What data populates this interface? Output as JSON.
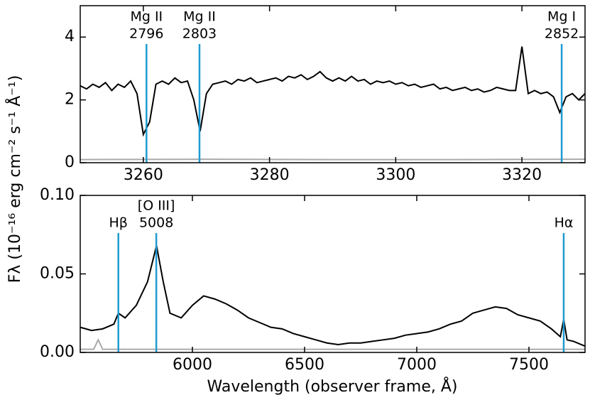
{
  "chart_data": [
    {
      "type": "line",
      "ylabel": "Fλ (10⁻¹⁶ erg cm⁻² s⁻¹ Å⁻¹)",
      "xlim": [
        3250,
        3330
      ],
      "xticks": [
        3260,
        3280,
        3300,
        3320
      ],
      "ylim": [
        0,
        5
      ],
      "yticks": [
        0,
        2,
        4
      ],
      "line_color": "#1f9bd1",
      "annotations": [
        {
          "x": 3260.5,
          "lines": [
            "Mg II",
            "2796"
          ]
        },
        {
          "x": 3268.9,
          "lines": [
            "Mg II",
            "2803"
          ]
        },
        {
          "x": 3326.3,
          "lines": [
            "Mg I",
            "2852"
          ]
        }
      ],
      "series": [
        {
          "color": "#000000",
          "x": [
            3250,
            3251,
            3252,
            3253,
            3254,
            3255,
            3256,
            3257,
            3258,
            3259,
            3260,
            3261,
            3262,
            3263,
            3264,
            3265,
            3266,
            3267,
            3268,
            3269,
            3270,
            3271,
            3272,
            3273,
            3274,
            3275,
            3276,
            3277,
            3278,
            3279,
            3280,
            3281,
            3282,
            3283,
            3284,
            3285,
            3286,
            3287,
            3288,
            3289,
            3290,
            3291,
            3292,
            3293,
            3294,
            3295,
            3296,
            3297,
            3298,
            3299,
            3300,
            3301,
            3302,
            3303,
            3304,
            3305,
            3306,
            3307,
            3308,
            3309,
            3310,
            3311,
            3312,
            3313,
            3314,
            3315,
            3316,
            3317,
            3318,
            3319,
            3320,
            3321,
            3322,
            3323,
            3324,
            3325,
            3326,
            3327,
            3328,
            3329,
            3330
          ],
          "values": [
            2.45,
            2.35,
            2.5,
            2.4,
            2.55,
            2.3,
            2.5,
            2.4,
            2.6,
            2.2,
            0.9,
            1.3,
            2.5,
            2.6,
            2.5,
            2.7,
            2.55,
            2.6,
            2.0,
            1.0,
            2.2,
            2.5,
            2.55,
            2.6,
            2.5,
            2.65,
            2.6,
            2.7,
            2.55,
            2.6,
            2.65,
            2.7,
            2.6,
            2.75,
            2.7,
            2.8,
            2.65,
            2.75,
            2.9,
            2.7,
            2.6,
            2.7,
            2.6,
            2.75,
            2.6,
            2.65,
            2.5,
            2.6,
            2.55,
            2.6,
            2.5,
            2.55,
            2.45,
            2.5,
            2.4,
            2.45,
            2.5,
            2.35,
            2.4,
            2.3,
            2.35,
            2.4,
            2.3,
            2.35,
            2.25,
            2.3,
            2.4,
            2.35,
            2.3,
            2.3,
            3.7,
            2.2,
            2.3,
            2.2,
            2.25,
            2.1,
            1.6,
            2.1,
            2.2,
            2.0,
            2.2
          ]
        },
        {
          "color": "#aaaaaa",
          "x": [
            3250,
            3270,
            3290,
            3310,
            3330
          ],
          "values": [
            0.1,
            0.11,
            0.1,
            0.1,
            0.11
          ]
        }
      ]
    },
    {
      "type": "line",
      "xlabel": "Wavelength (observer frame, Å)",
      "xlim": [
        5500,
        7750
      ],
      "xticks": [
        6000,
        6500,
        7000,
        7500
      ],
      "ylim": [
        0,
        0.1
      ],
      "yticks": [
        {
          "value": 0,
          "label": "0.00"
        },
        {
          "value": 0.05,
          "label": "0.05"
        },
        {
          "value": 0.1,
          "label": "0.10"
        }
      ],
      "line_color": "#1f9bd1",
      "annotations": [
        {
          "x": 5670,
          "lines": [
            "Hβ"
          ]
        },
        {
          "x": 5839,
          "lines": [
            "[O III]",
            "5008"
          ]
        },
        {
          "x": 7655,
          "lines": [
            "Hα"
          ]
        }
      ],
      "series": [
        {
          "color": "#000000",
          "x": [
            5500,
            5550,
            5600,
            5650,
            5670,
            5700,
            5750,
            5800,
            5840,
            5870,
            5900,
            5950,
            6000,
            6050,
            6100,
            6150,
            6200,
            6250,
            6300,
            6350,
            6400,
            6450,
            6500,
            6550,
            6600,
            6650,
            6700,
            6750,
            6800,
            6850,
            6900,
            6950,
            7000,
            7050,
            7100,
            7150,
            7200,
            7250,
            7300,
            7350,
            7400,
            7450,
            7500,
            7550,
            7600,
            7640,
            7655,
            7670,
            7700,
            7750
          ],
          "values": [
            0.016,
            0.014,
            0.015,
            0.018,
            0.025,
            0.022,
            0.03,
            0.045,
            0.068,
            0.045,
            0.025,
            0.022,
            0.03,
            0.036,
            0.034,
            0.031,
            0.027,
            0.022,
            0.019,
            0.016,
            0.015,
            0.012,
            0.01,
            0.008,
            0.006,
            0.005,
            0.006,
            0.006,
            0.007,
            0.008,
            0.009,
            0.011,
            0.012,
            0.013,
            0.015,
            0.018,
            0.02,
            0.025,
            0.027,
            0.029,
            0.028,
            0.024,
            0.022,
            0.02,
            0.015,
            0.01,
            0.021,
            0.008,
            0.007,
            0.004
          ]
        },
        {
          "color": "#aaaaaa",
          "x": [
            5500,
            5560,
            5580,
            5600,
            6000,
            6500,
            7000,
            7500,
            7750
          ],
          "values": [
            0.002,
            0.002,
            0.008,
            0.002,
            0.002,
            0.002,
            0.002,
            0.002,
            0.002
          ]
        }
      ]
    }
  ]
}
